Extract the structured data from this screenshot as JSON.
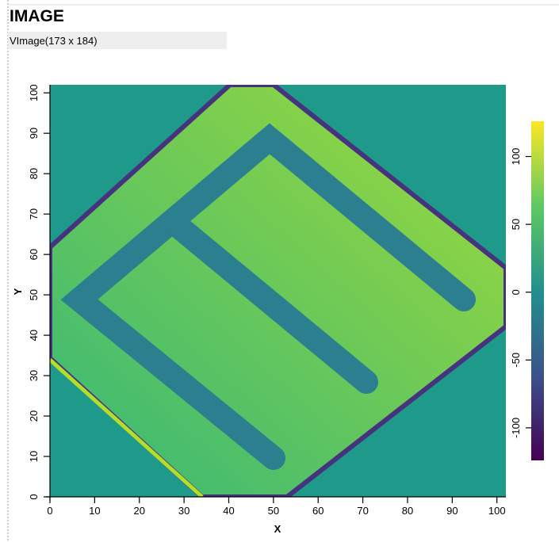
{
  "header": {
    "title": "IMAGE",
    "subtitle": "VImage(173 x 184)"
  },
  "chart_data": {
    "type": "image",
    "xlabel": "X",
    "ylabel": "Y",
    "xlim": [
      0,
      102
    ],
    "xticks": [
      0,
      10,
      20,
      30,
      40,
      50,
      60,
      70,
      80,
      90,
      100
    ],
    "ylim": [
      0,
      102
    ],
    "yticks": [
      0,
      10,
      20,
      30,
      40,
      50,
      60,
      70,
      80,
      90,
      100
    ],
    "colorbar": {
      "lim": [
        -124,
        126
      ],
      "ticks": [
        -100,
        -50,
        0,
        50,
        100
      ]
    }
  }
}
